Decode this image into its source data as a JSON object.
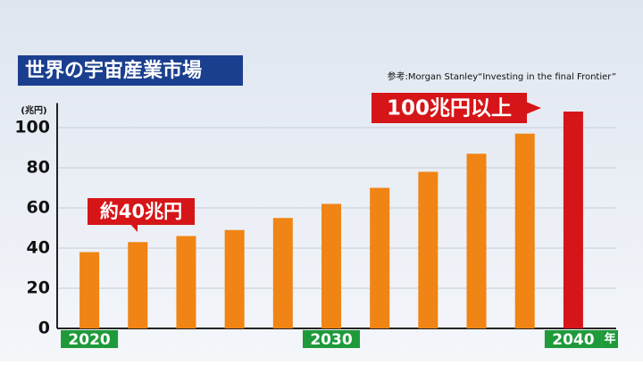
{
  "chart_data": {
    "type": "bar",
    "title": "世界の宇宙産業市場",
    "source": "参考:Morgan Stanley“Investing in the final Frontier”",
    "y_unit": "(兆円)",
    "x_unit": "年",
    "annotations": [
      "約40兆円",
      "100兆円以上"
    ],
    "categories": [
      "2020",
      null,
      null,
      null,
      null,
      "2030",
      null,
      null,
      null,
      null,
      "2040"
    ],
    "values": [
      38,
      43,
      46,
      49,
      55,
      62,
      70,
      78,
      87,
      97,
      108
    ],
    "colors": [
      "#f08414",
      "#f08414",
      "#f08414",
      "#f08414",
      "#f08414",
      "#f08414",
      "#f08414",
      "#f08414",
      "#f08414",
      "#f08414",
      "#d61518"
    ],
    "ylim": [
      0,
      110
    ],
    "yticks": [
      0,
      20,
      40,
      60,
      80,
      100
    ],
    "grid": true
  }
}
